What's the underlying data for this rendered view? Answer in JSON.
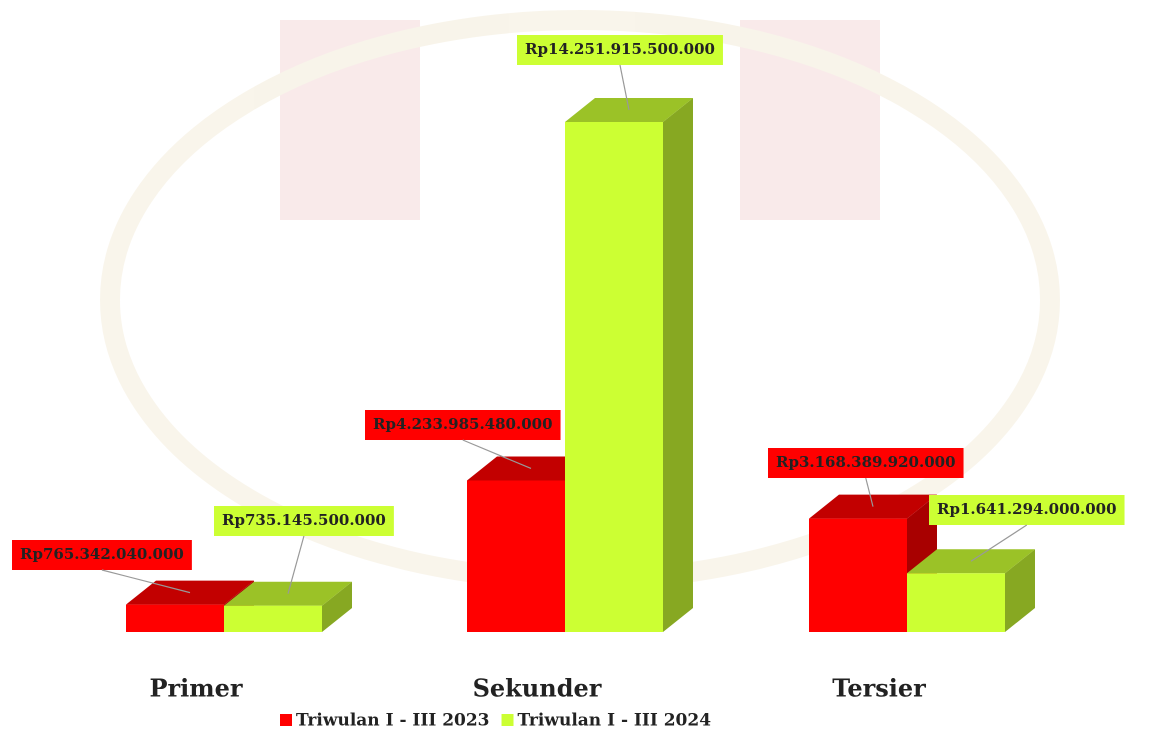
{
  "chart_data": {
    "type": "bar3d",
    "categories": [
      "Primer",
      "Sekunder",
      "Tersier"
    ],
    "series": [
      {
        "name": "Triwulan I - III 2023",
        "color": "#ff0000",
        "values": [
          765342040000,
          4233985480000,
          3168389920000
        ],
        "value_labels": [
          "Rp765.342.040.000",
          "Rp4.233.985.480.000",
          "Rp3.168.389.920.000"
        ]
      },
      {
        "name": "Triwulan I - III 2024",
        "color": "#ccff33",
        "values": [
          735145500000,
          14251915500000,
          1641294000000
        ],
        "value_labels": [
          "Rp735.145.500.000",
          "Rp14.251.915.500.000",
          "Rp1.641.294.000.000"
        ]
      }
    ]
  }
}
